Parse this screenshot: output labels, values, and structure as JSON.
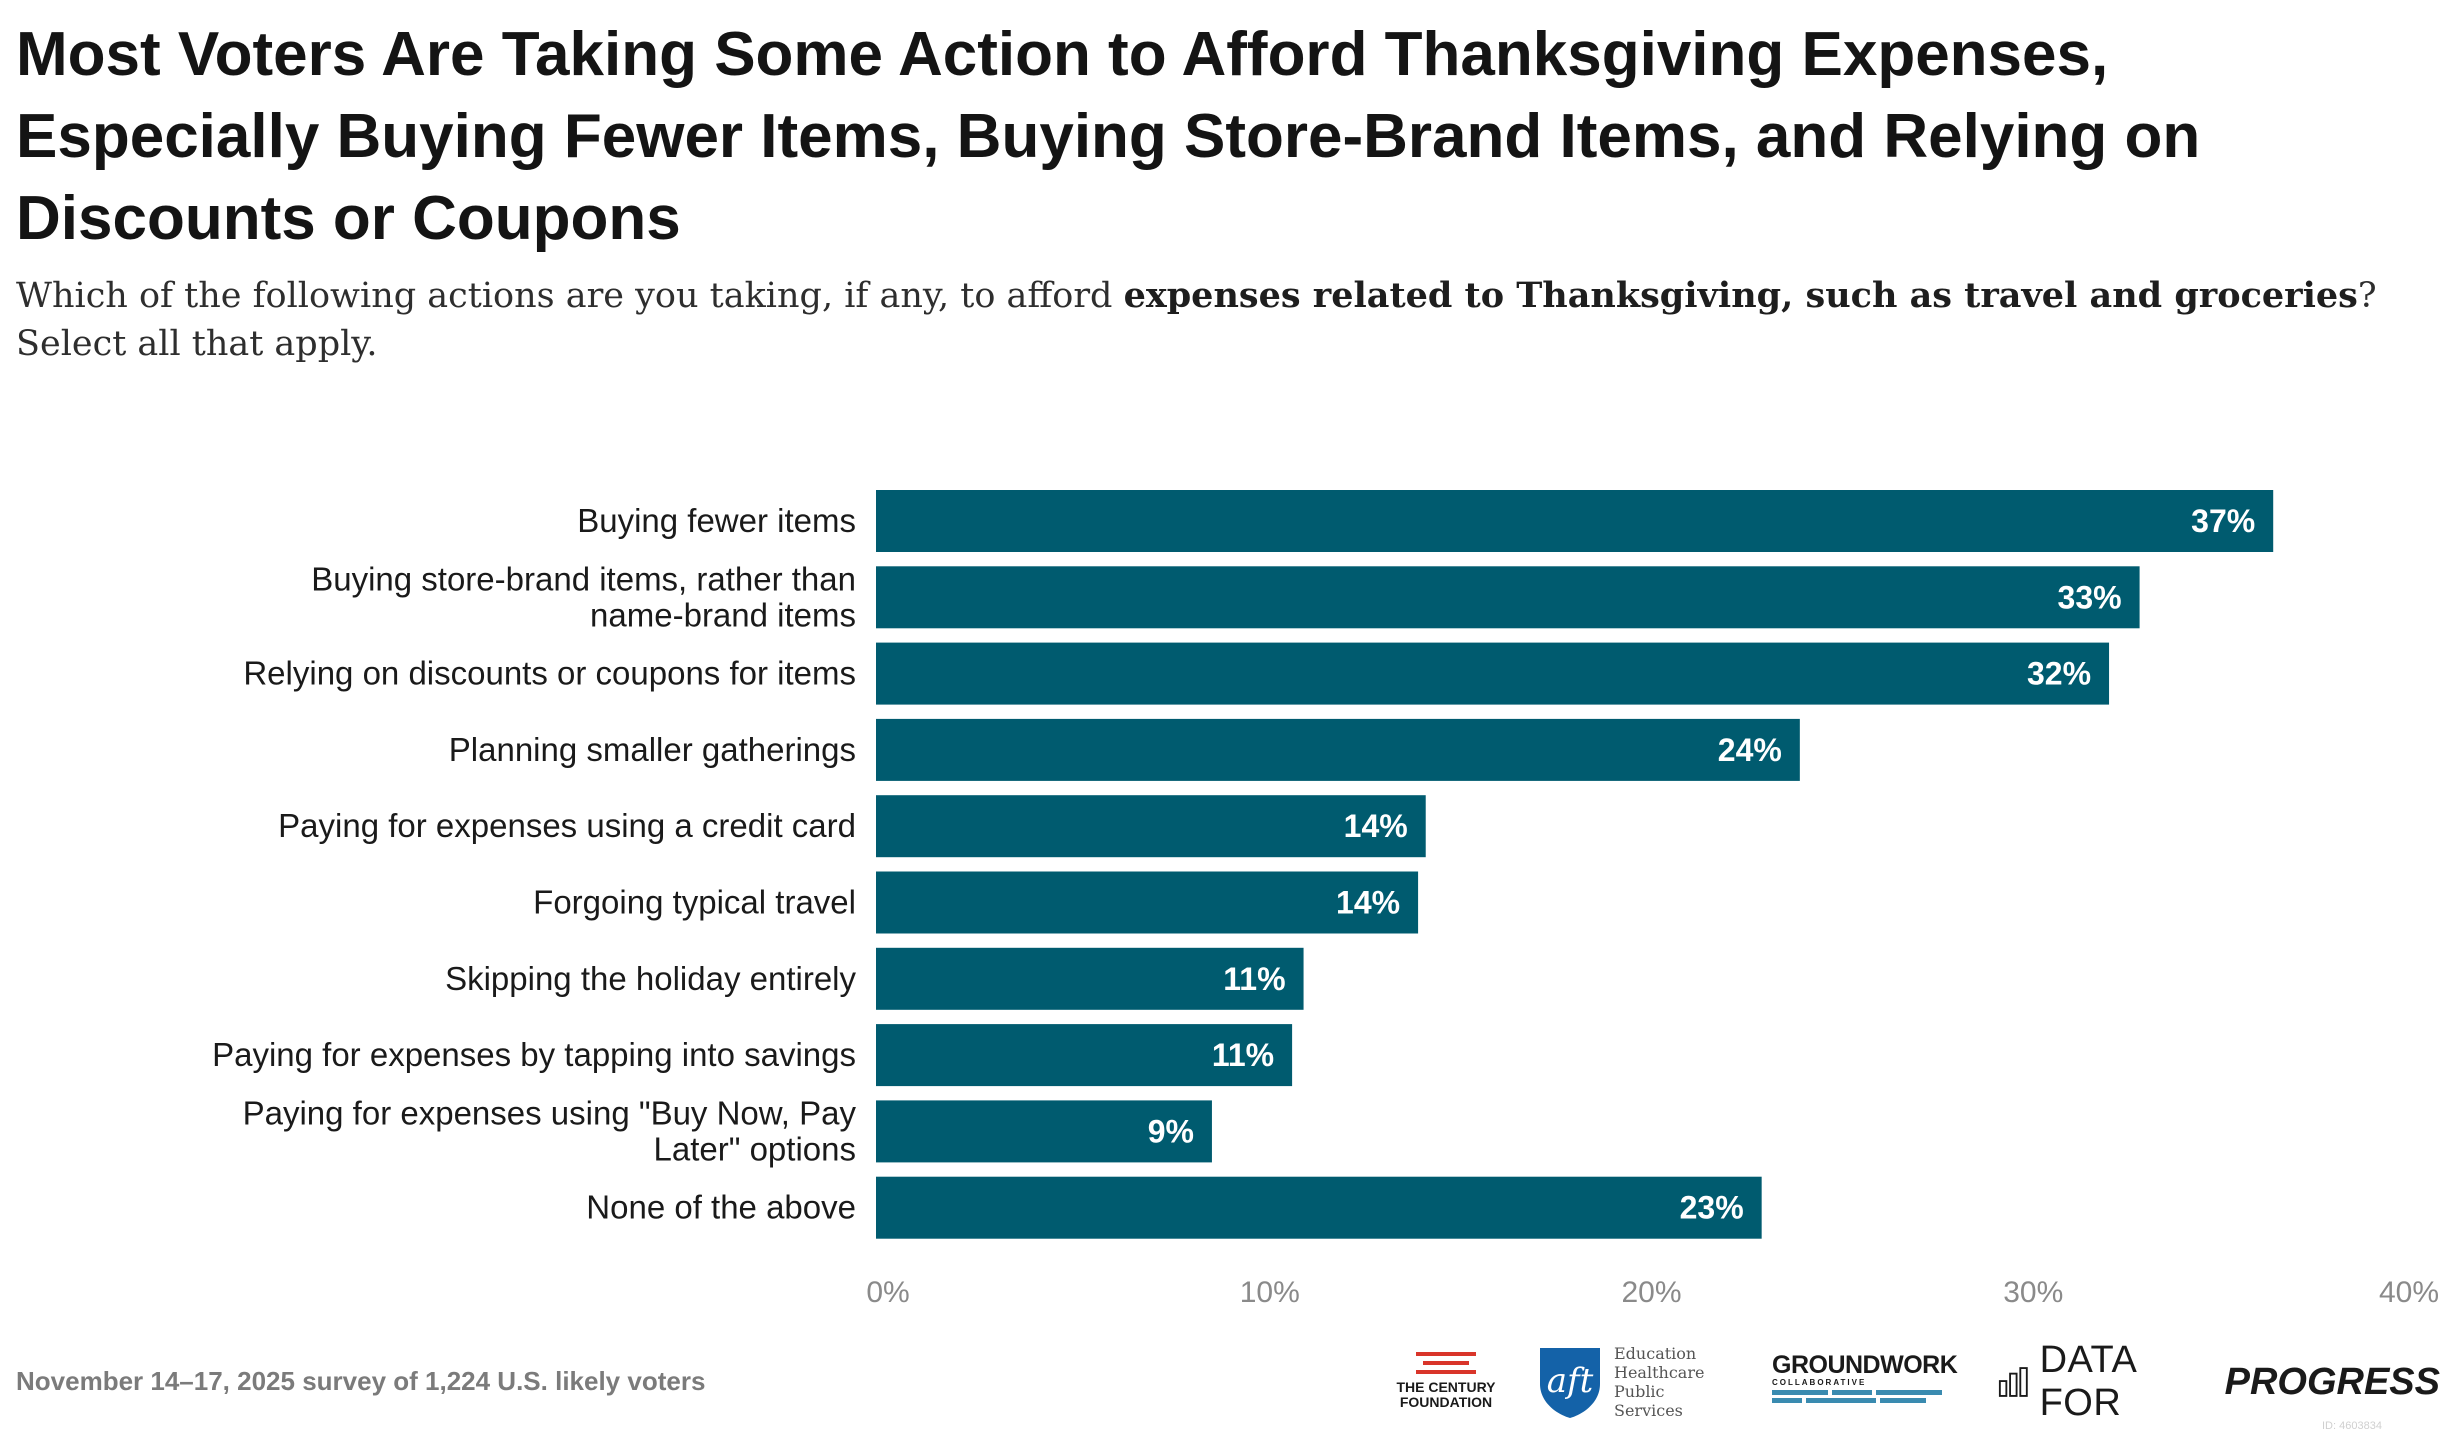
{
  "header": {
    "title": "Most Voters Are Taking Some Action to Afford Thanksgiving Expenses, Especially Buying Fewer Items, Buying Store-Brand Items, and Relying on Discounts or Coupons",
    "subtitle_pre": "Which of the following actions are you taking, if any, to afford ",
    "subtitle_bold": "expenses related to Thanksgiving, such as travel and groceries",
    "subtitle_post": "? Select all that apply."
  },
  "chart_data": {
    "type": "bar",
    "orientation": "horizontal",
    "categories": [
      "Buying fewer items",
      "Buying store-brand items, rather than name-brand items",
      "Relying on discounts or coupons for items",
      "Planning smaller gatherings",
      "Paying for expenses using a credit card",
      "Forgoing typical travel",
      "Skipping the holiday entirely",
      "Paying for expenses by tapping into savings",
      "Paying for expenses using \"Buy Now, Pay Later\" options",
      "None of the above"
    ],
    "values": [
      36.6,
      33.1,
      32.3,
      24.2,
      14.4,
      14.2,
      11.2,
      10.9,
      8.8,
      23.2
    ],
    "value_labels": [
      "37%",
      "33%",
      "32%",
      "24%",
      "14%",
      "14%",
      "11%",
      "11%",
      "9%",
      "23%"
    ],
    "xlim": [
      0,
      40
    ],
    "x_ticks": [
      0,
      10,
      20,
      30,
      40
    ],
    "x_tick_labels": [
      "0%",
      "10%",
      "20%",
      "30%",
      "40%"
    ],
    "bar_color": "#005b6f",
    "grid": false
  },
  "footer": {
    "note": "November 14–17, 2025 survey of 1,224 U.S. likely voters",
    "logos": {
      "century": "THE CENTURY FOUNDATION",
      "aft_text": "Education Healthcare Public Services",
      "aft_mark": "aft",
      "groundwork": "GROUNDWORK",
      "groundwork_sub": "COLLABORATIVE",
      "dfp_a": "DATA FOR",
      "dfp_b": "PROGRESS"
    },
    "id_text": "ID: 4603834"
  },
  "colors": {
    "bar": "#005b6f",
    "tcf_red": "#d9352a",
    "aft_blue": "#1462a8",
    "gw_blue": "#3a8bb0"
  }
}
